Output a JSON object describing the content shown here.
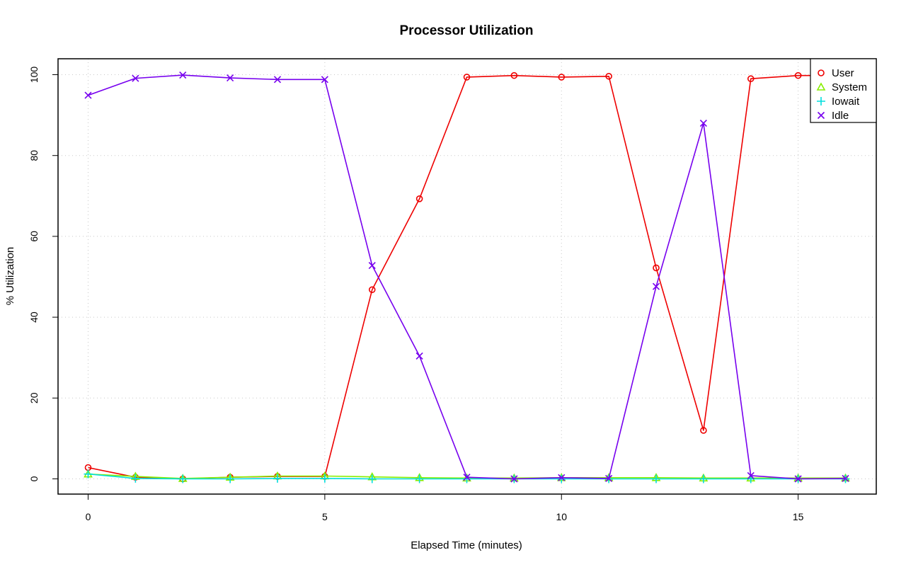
{
  "chart_data": {
    "type": "line",
    "title": "Processor Utilization",
    "xlabel": "Elapsed Time (minutes)",
    "ylabel": "% Utilization",
    "xlim": [
      0,
      16
    ],
    "ylim": [
      0,
      100
    ],
    "x_ticks": [
      0,
      5,
      10,
      15
    ],
    "y_ticks": [
      0,
      20,
      40,
      60,
      80,
      100
    ],
    "grid": true,
    "legend_position": "top-right",
    "x": [
      0,
      1,
      2,
      3,
      4,
      5,
      6,
      7,
      8,
      9,
      10,
      11,
      12,
      13,
      14,
      15,
      16
    ],
    "series": [
      {
        "name": "User",
        "color": "#ee0000",
        "marker": "circle",
        "values": [
          2.8,
          0.4,
          0.0,
          0.4,
          0.6,
          0.6,
          46.8,
          69.3,
          99.4,
          99.8,
          99.4,
          99.6,
          52.2,
          12.0,
          99.0,
          99.8,
          99.8
        ]
      },
      {
        "name": "System",
        "color": "#88ee00",
        "marker": "triangle",
        "values": [
          1.2,
          0.6,
          0.1,
          0.4,
          0.7,
          0.7,
          0.5,
          0.3,
          0.2,
          0.2,
          0.3,
          0.3,
          0.3,
          0.2,
          0.2,
          0.2,
          0.2
        ]
      },
      {
        "name": "Iowait",
        "color": "#00dddd",
        "marker": "plus",
        "values": [
          1.2,
          0.1,
          0.0,
          0.0,
          0.1,
          0.1,
          0.0,
          0.0,
          0.0,
          0.0,
          0.0,
          0.0,
          0.0,
          0.0,
          0.0,
          0.0,
          0.0
        ]
      },
      {
        "name": "Idle",
        "color": "#7700ee",
        "marker": "cross",
        "values": [
          94.9,
          99.1,
          99.9,
          99.2,
          98.8,
          98.8,
          52.8,
          30.4,
          0.4,
          0.0,
          0.3,
          0.1,
          47.6,
          88.0,
          0.8,
          0.0,
          0.1
        ]
      }
    ]
  }
}
